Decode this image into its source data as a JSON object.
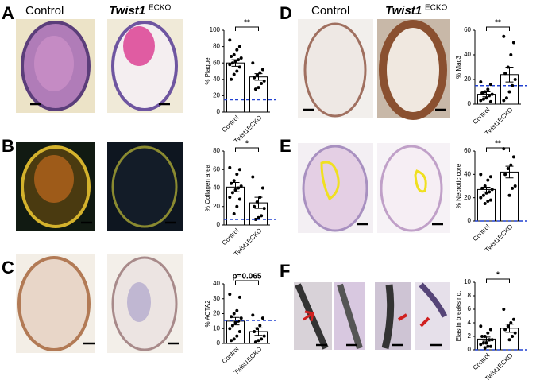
{
  "panels": [
    {
      "label": "A"
    },
    {
      "label": "B"
    },
    {
      "label": "C"
    },
    {
      "label": "D"
    },
    {
      "label": "E"
    },
    {
      "label": "F"
    }
  ],
  "image_headers": [
    {
      "control": "Control",
      "name": "Twist1",
      "superscript": "ECKO"
    },
    {
      "control": "Control",
      "name": "Twist1",
      "superscript": "ECKO"
    }
  ],
  "chart_data": [
    {
      "type": "bar",
      "ylabel": "% Plaque",
      "categories": [
        "Control",
        "Twist1ECKO"
      ],
      "values": [
        60,
        43
      ],
      "errors": [
        4,
        4
      ],
      "points": [
        [
          88,
          80,
          76,
          70,
          68,
          66,
          64,
          62,
          60,
          58,
          55,
          50,
          46,
          40
        ],
        [
          60,
          52,
          48,
          45,
          42,
          38,
          35,
          30,
          28
        ]
      ],
      "reference_line": 15,
      "significance": "**",
      "ylim": [
        0,
        100
      ],
      "yticks": [
        0,
        20,
        40,
        60,
        80,
        100
      ]
    },
    {
      "type": "bar",
      "ylabel": "% Collagen area",
      "categories": [
        "Control",
        "Twist1ECKO"
      ],
      "values": [
        41,
        24
      ],
      "errors": [
        5,
        6
      ],
      "points": [
        [
          62,
          60,
          55,
          48,
          45,
          42,
          40,
          38,
          35,
          30,
          28,
          20,
          12
        ],
        [
          52,
          40,
          30,
          25,
          20,
          18,
          10,
          8,
          6
        ]
      ],
      "reference_line": 6,
      "significance": "*",
      "ylim": [
        0,
        80
      ],
      "yticks": [
        0,
        20,
        40,
        60,
        80
      ]
    },
    {
      "type": "bar",
      "ylabel": "% ACTA2",
      "categories": [
        "Control",
        "Twist1ECKO"
      ],
      "values": [
        15,
        8
      ],
      "errors": [
        2.5,
        2.5
      ],
      "points": [
        [
          33,
          31,
          22,
          20,
          18,
          17,
          15,
          14,
          12,
          10,
          8,
          5,
          3,
          2
        ],
        [
          19,
          17,
          12,
          10,
          8,
          5,
          3,
          2,
          1
        ]
      ],
      "reference_line": 15.5,
      "significance": "p=0.065",
      "ylim": [
        0,
        40
      ],
      "yticks": [
        0,
        10,
        20,
        30,
        40
      ]
    },
    {
      "type": "bar",
      "ylabel": "% Mac3",
      "categories": [
        "Control",
        "Twist1ECKO"
      ],
      "values": [
        8,
        24
      ],
      "errors": [
        2,
        6
      ],
      "points": [
        [
          18,
          16,
          12,
          10,
          9,
          8,
          7,
          5,
          4,
          3,
          2
        ],
        [
          55,
          50,
          40,
          30,
          25,
          20,
          15,
          10,
          5,
          3
        ]
      ],
      "reference_line": 15,
      "significance": "**",
      "ylim": [
        0,
        60
      ],
      "yticks": [
        0,
        20,
        40,
        60
      ]
    },
    {
      "type": "bar",
      "ylabel": "% Necrotic core",
      "categories": [
        "Control",
        "Twist1ECKO"
      ],
      "values": [
        27,
        42
      ],
      "errors": [
        2,
        5
      ],
      "points": [
        [
          40,
          38,
          35,
          30,
          28,
          27,
          25,
          24,
          22,
          20,
          18,
          17,
          15
        ],
        [
          62,
          55,
          48,
          45,
          40,
          30,
          28,
          22
        ]
      ],
      "reference_line": 0,
      "significance": "**",
      "ylim": [
        0,
        60
      ],
      "yticks": [
        0,
        20,
        40,
        60
      ]
    },
    {
      "type": "bar",
      "ylabel": "Elastin breaks no.",
      "categories": [
        "Control",
        "Twist1ECKO"
      ],
      "values": [
        1.6,
        3.2
      ],
      "errors": [
        0.3,
        0.6
      ],
      "points": [
        [
          3.5,
          3,
          2.5,
          2,
          2,
          1.5,
          1.5,
          1,
          1,
          0.8,
          0.5,
          0.5,
          0.3
        ],
        [
          6,
          4.5,
          4,
          3.5,
          3,
          2.5,
          2,
          1.5
        ]
      ],
      "reference_line": 0,
      "significance": "*",
      "ylim": [
        0,
        10
      ],
      "yticks": [
        0,
        2,
        4,
        6,
        8,
        10
      ]
    }
  ]
}
